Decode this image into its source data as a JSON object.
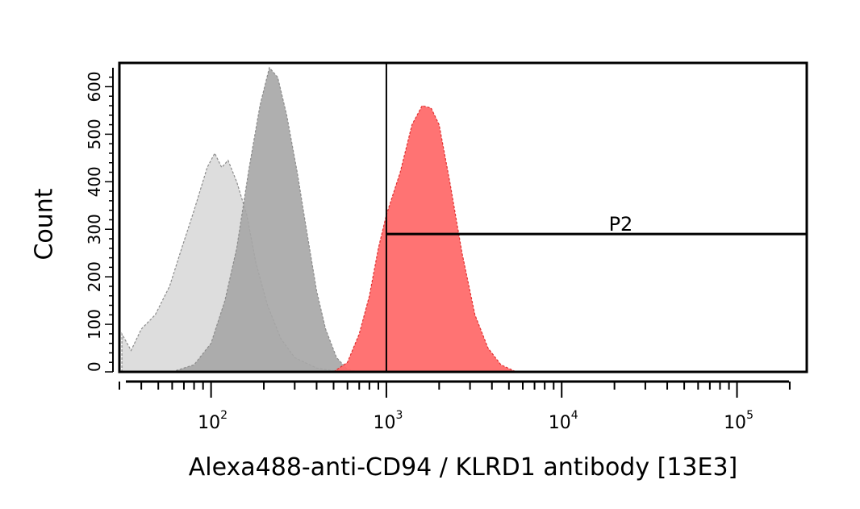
{
  "chart_data": {
    "type": "area",
    "title": "",
    "xlabel": "Alexa488-anti-CD94 / KLRD1 antibody [13E3]",
    "ylabel": "Count",
    "x_scale": "log",
    "xlim": [
      30,
      250000
    ],
    "ylim": [
      0,
      650
    ],
    "x_ticks": [
      {
        "value": 100,
        "base": "10",
        "exp": "2"
      },
      {
        "value": 1000,
        "base": "10",
        "exp": "3"
      },
      {
        "value": 10000,
        "base": "10",
        "exp": "4"
      },
      {
        "value": 100000,
        "base": "10",
        "exp": "5"
      }
    ],
    "y_tick_values": [
      0,
      100,
      200,
      300,
      400,
      500,
      600
    ],
    "y_tick_labels": [
      "0",
      "100",
      "200",
      "300",
      "400",
      "500",
      "600"
    ],
    "series": [
      {
        "color": "#d9d9d9",
        "points": [
          [
            31,
            80
          ],
          [
            35,
            45
          ],
          [
            40,
            90
          ],
          [
            48,
            120
          ],
          [
            58,
            180
          ],
          [
            68,
            260
          ],
          [
            80,
            340
          ],
          [
            95,
            430
          ],
          [
            105,
            460
          ],
          [
            115,
            430
          ],
          [
            125,
            445
          ],
          [
            140,
            400
          ],
          [
            160,
            330
          ],
          [
            180,
            230
          ],
          [
            210,
            140
          ],
          [
            250,
            70
          ],
          [
            300,
            30
          ],
          [
            400,
            8
          ],
          [
            550,
            0
          ]
        ]
      },
      {
        "color": "#a6a6a6",
        "points": [
          [
            60,
            0
          ],
          [
            80,
            15
          ],
          [
            100,
            60
          ],
          [
            120,
            150
          ],
          [
            140,
            260
          ],
          [
            165,
            430
          ],
          [
            190,
            560
          ],
          [
            215,
            640
          ],
          [
            240,
            620
          ],
          [
            270,
            540
          ],
          [
            310,
            420
          ],
          [
            350,
            300
          ],
          [
            400,
            170
          ],
          [
            450,
            90
          ],
          [
            520,
            30
          ],
          [
            600,
            5
          ],
          [
            700,
            0
          ]
        ]
      },
      {
        "color": "#ff6b6b",
        "points": [
          [
            500,
            0
          ],
          [
            600,
            20
          ],
          [
            700,
            80
          ],
          [
            800,
            160
          ],
          [
            900,
            260
          ],
          [
            1000,
            330
          ],
          [
            1200,
            420
          ],
          [
            1400,
            520
          ],
          [
            1600,
            560
          ],
          [
            1800,
            555
          ],
          [
            2000,
            520
          ],
          [
            2300,
            400
          ],
          [
            2700,
            250
          ],
          [
            3200,
            120
          ],
          [
            3800,
            50
          ],
          [
            4500,
            15
          ],
          [
            5500,
            0
          ]
        ]
      }
    ],
    "gate": {
      "label": "P2",
      "x_start": 1000,
      "x_end": 250000,
      "level": 290
    }
  }
}
